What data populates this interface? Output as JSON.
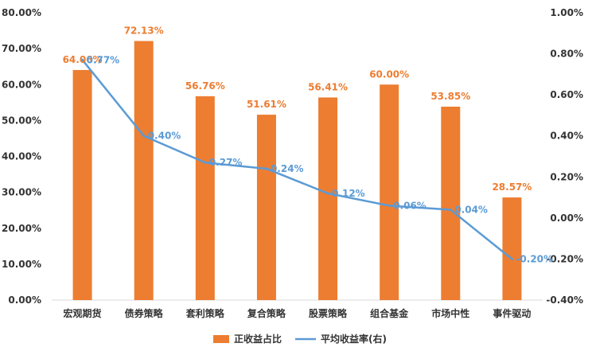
{
  "chart_data": {
    "type": "bar",
    "categories": [
      "宏观期货",
      "债券策略",
      "套利策略",
      "复合策略",
      "股票策略",
      "组合基金",
      "市场中性",
      "事件驱动"
    ],
    "series": [
      {
        "name": "正收益占比",
        "type": "bar",
        "axis": "left",
        "values": [
          64.06,
          72.13,
          56.76,
          51.61,
          56.41,
          60.0,
          53.85,
          28.57
        ],
        "labels": [
          "64.06%",
          "72.13%",
          "56.76%",
          "51.61%",
          "56.41%",
          "60.00%",
          "53.85%",
          "28.57%"
        ],
        "color": "#ED7D31"
      },
      {
        "name": "平均收益率(右)",
        "type": "line",
        "axis": "right",
        "values": [
          0.77,
          0.4,
          0.27,
          0.24,
          0.12,
          0.06,
          0.04,
          -0.2
        ],
        "labels": [
          "0.77%",
          "0.40%",
          "0.27%",
          "0.24%",
          "0.12%",
          "0.06%",
          "0.04%",
          "-0.20%"
        ],
        "color": "#5B9BD5"
      }
    ],
    "y_left": {
      "range": [
        0,
        80
      ],
      "ticks": [
        0,
        10,
        20,
        30,
        40,
        50,
        60,
        70,
        80
      ],
      "tick_labels": [
        "0.00%",
        "10.00%",
        "20.00%",
        "30.00%",
        "40.00%",
        "50.00%",
        "60.00%",
        "70.00%",
        "80.00%"
      ]
    },
    "y_right": {
      "range": [
        -0.4,
        1.0
      ],
      "ticks": [
        -0.4,
        -0.2,
        0.0,
        0.2,
        0.4,
        0.6,
        0.8,
        1.0
      ],
      "tick_labels": [
        "-0.40%",
        "-0.20%",
        "0.00%",
        "0.20%",
        "0.40%",
        "0.60%",
        "0.80%",
        "1.00%"
      ]
    },
    "grid": false,
    "legend_position": "bottom",
    "title": "",
    "xlabel": "",
    "ylabel": ""
  }
}
